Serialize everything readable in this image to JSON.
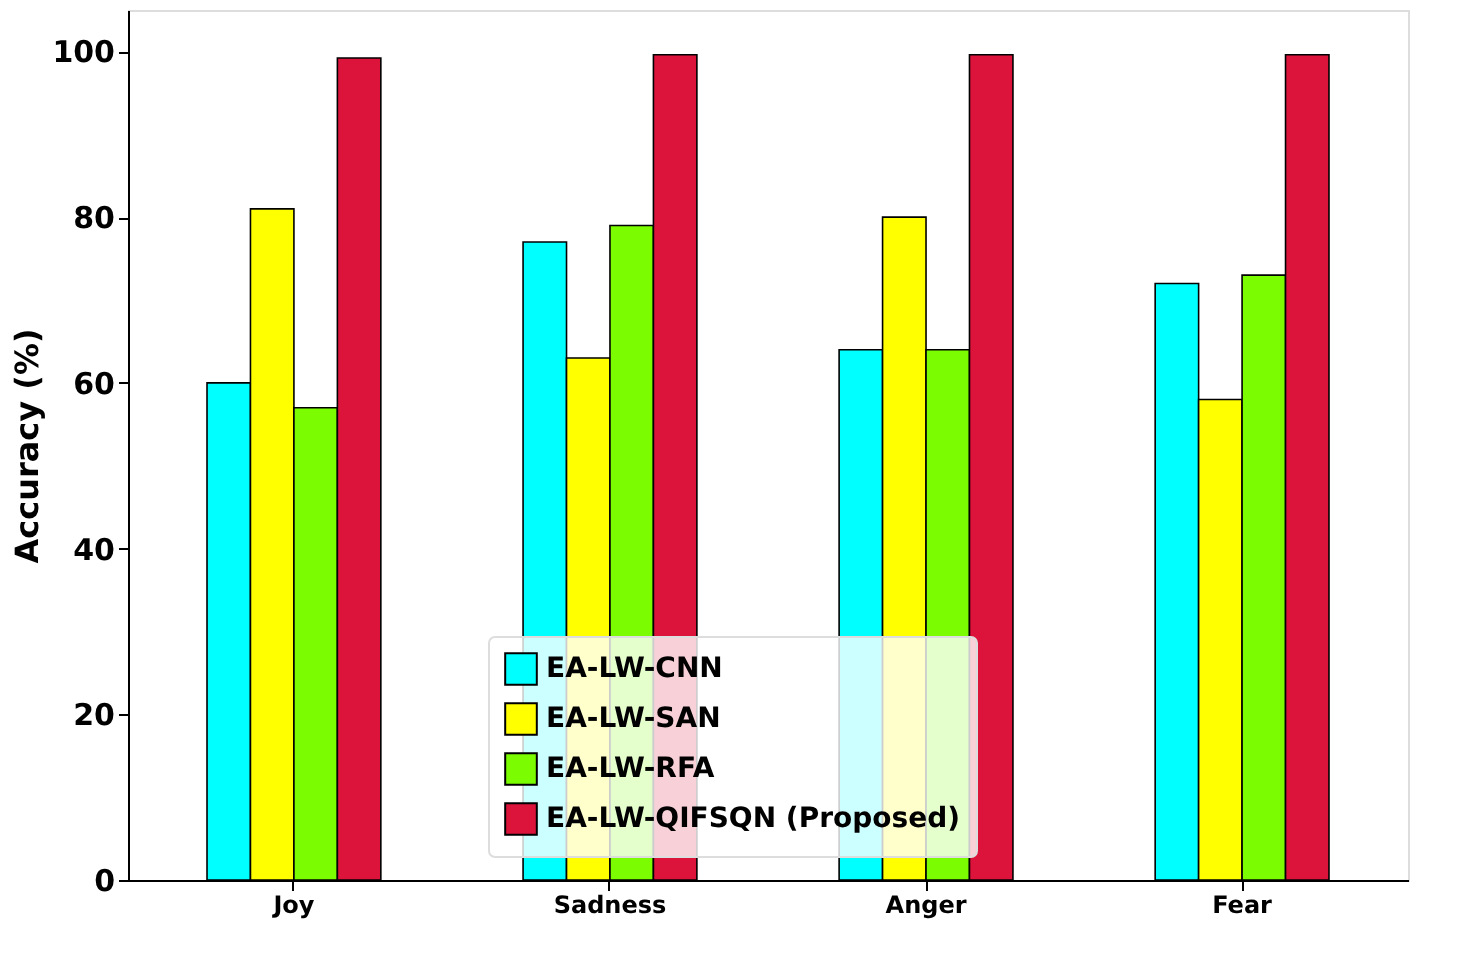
{
  "chart_data": {
    "type": "bar",
    "ylabel": "Accuracy (%)",
    "categories": [
      "Joy",
      "Sadness",
      "Anger",
      "Fear"
    ],
    "series": [
      {
        "name": "EA-LW-CNN",
        "color": "#00ffff",
        "values": [
          60,
          77,
          64,
          72
        ]
      },
      {
        "name": "EA-LW-SAN",
        "color": "#ffff00",
        "values": [
          81,
          63,
          80,
          58
        ]
      },
      {
        "name": "EA-LW-RFA",
        "color": "#7cfc00",
        "values": [
          57,
          79,
          64,
          73
        ]
      },
      {
        "name": "EA-LW-QIFSQN (Proposed)",
        "color": "#dc143c",
        "values": [
          99.2,
          99.6,
          99.6,
          99.6
        ]
      }
    ],
    "ylim": [
      0,
      105
    ],
    "yticks": [
      0,
      20,
      40,
      60,
      80,
      100
    ],
    "grid": false,
    "legend": "bottom"
  }
}
